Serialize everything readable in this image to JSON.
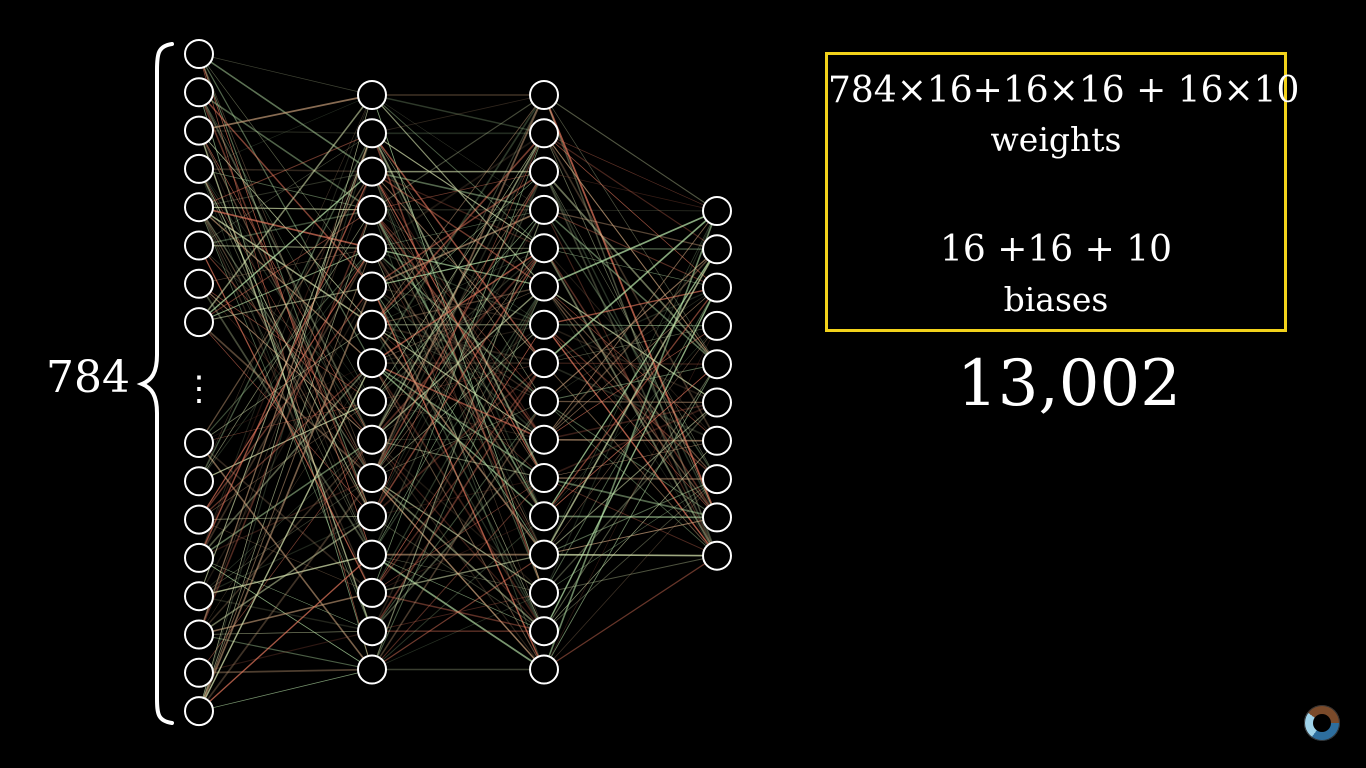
{
  "input_layer": {
    "count_label": "784",
    "ellipsis": "⋮"
  },
  "info_box": {
    "weights_formula": "784×16+16×16 + 16×10",
    "weights_label": "weights",
    "biases_formula": "16 +16 + 10",
    "biases_label": "biases"
  },
  "total_params": "13,002",
  "colors": {
    "box_border": "#f2d21b",
    "node_stroke": "#ffffff",
    "edge_green": "#b7e4a8",
    "edge_red": "#e8795e"
  },
  "logo_icon": "pi-creature-eye-logo"
}
